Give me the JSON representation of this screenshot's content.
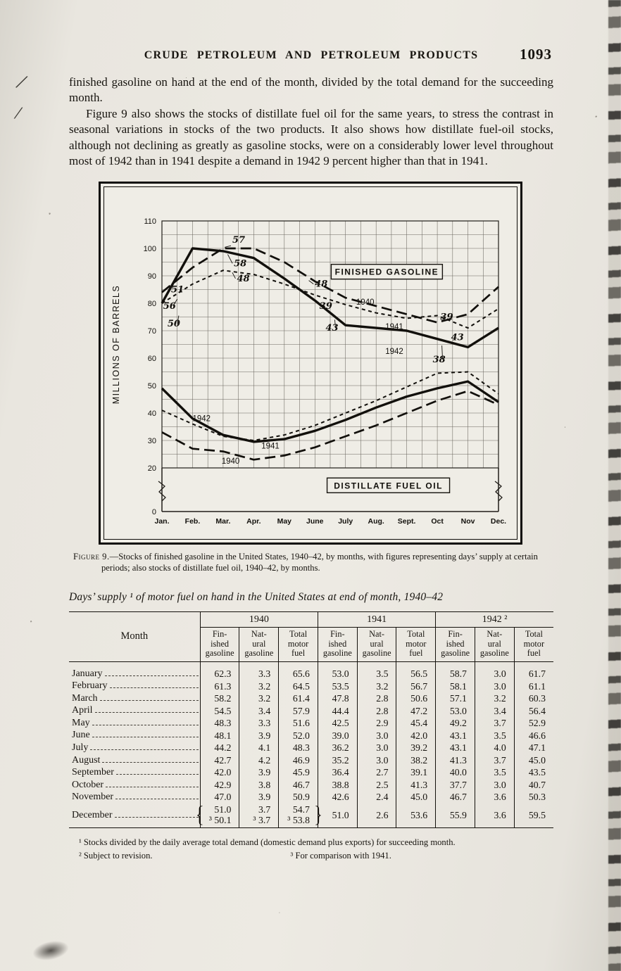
{
  "header": {
    "title": "CRUDE PETROLEUM AND PETROLEUM PRODUCTS",
    "page_number": "1093"
  },
  "paragraphs": {
    "p1": "finished gasoline on hand at the end of the month, divided by the total demand for the succeeding month.",
    "p2": "Figure 9 also shows the stocks of distillate fuel oil for the same years, to stress the contrast in seasonal variations in stocks of the two products.  It also shows how distillate fuel-oil stocks, although not declining as greatly as gasoline stocks, were on a considerably lower level throughout most of 1942 than in 1941 despite a demand in 1942 9 percent higher than that in 1941."
  },
  "figure": {
    "caption_label": "Figure 9.",
    "caption_text": "—Stocks of finished gasoline in the United States, 1940–42, by months, with figures representing days’ supply at certain periods; also stocks of distillate fuel oil, 1940–42, by months."
  },
  "chart_data": {
    "type": "line",
    "ylabel": "MILLIONS OF BARRELS",
    "x_categories": [
      "Jan.",
      "Feb.",
      "Mar.",
      "Apr.",
      "May",
      "June",
      "July",
      "Aug.",
      "Sept.",
      "Oct",
      "Nov",
      "Dec."
    ],
    "y_ticks": [
      110,
      100,
      90,
      80,
      70,
      60,
      50,
      40,
      30,
      20
    ],
    "y_baseline": 0,
    "ylim": [
      0,
      110
    ],
    "axis_break": [
      0,
      20
    ],
    "grid": true,
    "series": [
      {
        "name": "finished-gasoline-1940",
        "group": "FINISHED GASOLINE",
        "year": "1940",
        "style": "long-dash",
        "values": [
          84,
          93,
          100,
          100,
          95,
          88,
          82,
          79,
          76,
          73,
          76,
          86
        ]
      },
      {
        "name": "finished-gasoline-1941",
        "group": "FINISHED GASOLINE",
        "year": "1941",
        "style": "short-dash",
        "values": [
          80,
          87,
          92,
          90.5,
          87,
          83,
          79.5,
          76.5,
          74.5,
          75.5,
          71,
          78
        ]
      },
      {
        "name": "finished-gasoline-1942",
        "group": "FINISHED GASOLINE",
        "year": "1942",
        "style": "solid",
        "values": [
          80,
          100,
          99,
          96.5,
          89,
          81,
          72,
          71,
          70,
          67,
          64,
          71
        ]
      },
      {
        "name": "distillate-fuel-oil-1940",
        "group": "DISTILLATE FUEL OIL",
        "year": "1940",
        "style": "long-dash",
        "values": [
          33,
          27,
          26,
          23,
          24.5,
          27.5,
          31.5,
          35.5,
          40,
          44.5,
          48,
          43
        ]
      },
      {
        "name": "distillate-fuel-oil-1941",
        "group": "DISTILLATE FUEL OIL",
        "year": "1941",
        "style": "short-dash",
        "values": [
          41,
          36,
          31.5,
          30,
          32,
          35.5,
          40,
          44.5,
          49.5,
          54.5,
          55,
          47
        ]
      },
      {
        "name": "distillate-fuel-oil-1942",
        "group": "DISTILLATE FUEL OIL",
        "year": "1942",
        "style": "solid",
        "values": [
          49,
          38,
          32,
          29.5,
          30.5,
          33.5,
          37.5,
          42,
          46,
          49,
          51.5,
          44
        ]
      }
    ],
    "box_labels": [
      {
        "text": "FINISHED GASOLINE",
        "month": 7.35,
        "value": 91.5
      },
      {
        "text": "DISTILLATE FUEL OIL",
        "month": 7.4,
        "value": 12
      }
    ],
    "series_labels": [
      {
        "text": "1940",
        "month": 6.35,
        "value": 79.5
      },
      {
        "text": "1941",
        "month": 7.3,
        "value": 70.5
      },
      {
        "text": "1942",
        "month": 7.3,
        "value": 61.5
      },
      {
        "text": "1942",
        "month": 1.0,
        "value": 37
      },
      {
        "text": "1941",
        "month": 3.25,
        "value": 27
      },
      {
        "text": "1940",
        "month": 1.95,
        "value": 21.5
      }
    ],
    "annotations": [
      {
        "text": "51",
        "month": 0.3,
        "value": 84
      },
      {
        "text": "56",
        "month": 0.04,
        "value": 78,
        "tm": 0.5,
        "tv": 81.5
      },
      {
        "text": "50",
        "month": 0.18,
        "value": 71.5,
        "tm": 0.55,
        "tv": 75.5
      },
      {
        "text": "57",
        "month": 2.3,
        "value": 102,
        "tm": 2.05,
        "tv": 100.4
      },
      {
        "text": "58",
        "month": 2.35,
        "value": 93.5,
        "tm": 2.15,
        "tv": 97.8
      },
      {
        "text": "48",
        "month": 2.45,
        "value": 88,
        "tm": 2.3,
        "tv": 91.2
      },
      {
        "text": "48",
        "month": 5.0,
        "value": 86,
        "tm": 4.8,
        "tv": 88.3
      },
      {
        "text": "39",
        "month": 5.15,
        "value": 78
      },
      {
        "text": "43",
        "month": 5.35,
        "value": 70,
        "tm": 5.65,
        "tv": 74
      },
      {
        "text": "39",
        "month": 9.1,
        "value": 74
      },
      {
        "text": "43",
        "month": 9.45,
        "value": 66.5
      },
      {
        "text": "38",
        "month": 8.85,
        "value": 58.5,
        "tm": 9.15,
        "tv": 64.6
      }
    ]
  },
  "table": {
    "title": "Days’ supply ¹ of motor fuel on hand in the United States at end of month, 1940–42",
    "month_header": "Month",
    "year_groups": [
      {
        "year": "1940",
        "columns": [
          "Fin-\nished\ngasoline",
          "Nat-\nural\ngasoline",
          "Total\nmotor\nfuel"
        ]
      },
      {
        "year": "1941",
        "columns": [
          "Fin-\nished\ngasoline",
          "Nat-\nural\ngasoline",
          "Total\nmotor\nfuel"
        ]
      },
      {
        "year": "1942 ²",
        "columns": [
          "Fin-\nished\ngasoline",
          "Nat-\nural\ngasoline",
          "Total\nmotor\nfuel"
        ]
      }
    ],
    "rows": [
      {
        "month": "January",
        "values": [
          "62.3",
          "3.3",
          "65.6",
          "53.0",
          "3.5",
          "56.5",
          "58.7",
          "3.0",
          "61.7"
        ]
      },
      {
        "month": "February",
        "values": [
          "61.3",
          "3.2",
          "64.5",
          "53.5",
          "3.2",
          "56.7",
          "58.1",
          "3.0",
          "61.1"
        ]
      },
      {
        "month": "March",
        "values": [
          "58.2",
          "3.2",
          "61.4",
          "47.8",
          "2.8",
          "50.6",
          "57.1",
          "3.2",
          "60.3"
        ]
      },
      {
        "month": "April",
        "values": [
          "54.5",
          "3.4",
          "57.9",
          "44.4",
          "2.8",
          "47.2",
          "53.0",
          "3.4",
          "56.4"
        ]
      },
      {
        "month": "May",
        "values": [
          "48.3",
          "3.3",
          "51.6",
          "42.5",
          "2.9",
          "45.4",
          "49.2",
          "3.7",
          "52.9"
        ]
      },
      {
        "month": "June",
        "values": [
          "48.1",
          "3.9",
          "52.0",
          "39.0",
          "3.0",
          "42.0",
          "43.1",
          "3.5",
          "46.6"
        ]
      },
      {
        "month": "July",
        "values": [
          "44.2",
          "4.1",
          "48.3",
          "36.2",
          "3.0",
          "39.2",
          "43.1",
          "4.0",
          "47.1"
        ]
      },
      {
        "month": "August",
        "values": [
          "42.7",
          "4.2",
          "46.9",
          "35.2",
          "3.0",
          "38.2",
          "41.3",
          "3.7",
          "45.0"
        ]
      },
      {
        "month": "September",
        "values": [
          "42.0",
          "3.9",
          "45.9",
          "36.4",
          "2.7",
          "39.1",
          "40.0",
          "3.5",
          "43.5"
        ]
      },
      {
        "month": "October",
        "values": [
          "42.9",
          "3.8",
          "46.7",
          "38.8",
          "2.5",
          "41.3",
          "37.7",
          "3.0",
          "40.7"
        ]
      },
      {
        "month": "November",
        "values": [
          "47.0",
          "3.9",
          "50.9",
          "42.6",
          "2.4",
          "45.0",
          "46.7",
          "3.6",
          "50.3"
        ]
      },
      {
        "month": "December",
        "brace_open": "{",
        "brace_close": "}",
        "values": [
          "51.0\n³ 50.1",
          "3.7\n³ 3.7",
          "54.7\n³ 53.8",
          "51.0",
          "2.6",
          "53.6",
          "55.9",
          "3.6",
          "59.5"
        ]
      }
    ],
    "footnotes": {
      "fn1": "¹ Stocks divided by the daily average total demand (domestic demand plus exports) for succeeding month.",
      "fn2": "² Subject to revision.",
      "fn3": "³ For comparison with 1941."
    }
  }
}
